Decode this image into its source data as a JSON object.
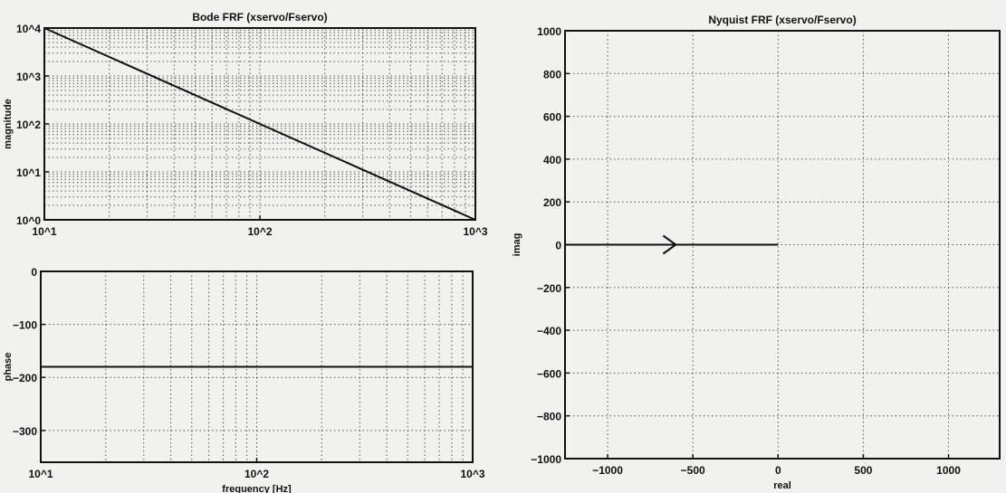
{
  "chart_data": [
    {
      "type": "line",
      "title": "Bode FRF (xservo/Fservo)",
      "xlabel": "",
      "ylabel": "magnitude",
      "xscale": "log",
      "yscale": "log",
      "xlim": [
        10,
        1000
      ],
      "ylim": [
        1,
        10000
      ],
      "xticks": [
        10,
        100,
        1000
      ],
      "xtick_labels": [
        "10^1",
        "10^2",
        "10^3"
      ],
      "yticks": [
        1,
        10,
        100,
        1000,
        10000
      ],
      "ytick_labels": [
        "10^0",
        "10^1",
        "10^2",
        "10^3",
        "10^4"
      ],
      "grid": true,
      "x": [
        10,
        1000
      ],
      "y": [
        10000,
        1
      ]
    },
    {
      "type": "line",
      "title": "",
      "xlabel": "frequency [Hz]",
      "ylabel": "phase",
      "xscale": "log",
      "xlim": [
        10,
        1000
      ],
      "ylim": [
        -360,
        0
      ],
      "xticks": [
        10,
        100,
        1000
      ],
      "xtick_labels": [
        "10^1",
        "10^2",
        "10^3"
      ],
      "yticks": [
        0,
        -100,
        -200,
        -300
      ],
      "ytick_labels": [
        "0",
        "−100",
        "−200",
        "−300"
      ],
      "grid": true,
      "x": [
        10,
        1000
      ],
      "y": [
        -180,
        -180
      ]
    },
    {
      "type": "line",
      "title": "Nyquist FRF (xservo/Fservo)",
      "xlabel": "real",
      "ylabel": "imag",
      "xlim": [
        -1250,
        1300
      ],
      "ylim": [
        -1000,
        1000
      ],
      "xticks": [
        -1000,
        -500,
        0,
        500,
        1000
      ],
      "xtick_labels": [
        "−1000",
        "−500",
        "0",
        "500",
        "1000"
      ],
      "yticks": [
        1000,
        800,
        600,
        400,
        200,
        0,
        -200,
        -400,
        -600,
        -800,
        -1000
      ],
      "ytick_labels": [
        "1000",
        "800",
        "600",
        "400",
        "200",
        "0",
        "−200",
        "−400",
        "−600",
        "−800",
        "−1000"
      ],
      "grid": true,
      "x": [
        -1250,
        0
      ],
      "y": [
        0,
        0
      ],
      "direction_arrow_at": -600
    }
  ]
}
